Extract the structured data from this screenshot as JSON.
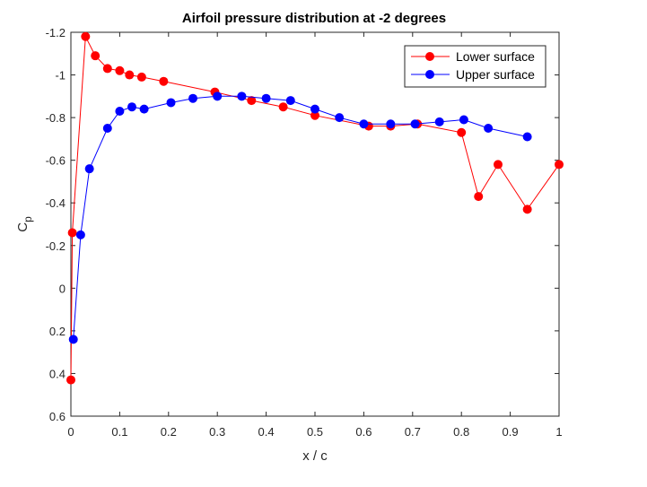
{
  "chart_data": {
    "type": "line",
    "title": "Airfoil pressure distribution at -2 degrees",
    "xlabel": "x / c",
    "ylabel_main": "C",
    "ylabel_sub": "p",
    "xlim": [
      0,
      1
    ],
    "ylim": [
      -1.2,
      0.6
    ],
    "y_reversed": true,
    "x_ticks": [
      0,
      0.1,
      0.2,
      0.3,
      0.4,
      0.5,
      0.6,
      0.7,
      0.8,
      0.9,
      1
    ],
    "x_tick_labels": [
      "0",
      "0.1",
      "0.2",
      "0.3",
      "0.4",
      "0.5",
      "0.6",
      "0.7",
      "0.8",
      "0.9",
      "1"
    ],
    "y_ticks": [
      -1.2,
      -1,
      -0.8,
      -0.6,
      -0.4,
      -0.2,
      0,
      0.2,
      0.4,
      0.6
    ],
    "y_tick_labels": [
      "-1.2",
      "-1",
      "-0.8",
      "-0.6",
      "-0.4",
      "-0.2",
      "0",
      "0.2",
      "0.4",
      "0.6"
    ],
    "grid": false,
    "legend_position": "top-right",
    "series": [
      {
        "name": "Lower surface",
        "color": "#ff0000",
        "x": [
          0.0,
          0.003,
          0.03,
          0.05,
          0.075,
          0.1,
          0.12,
          0.145,
          0.19,
          0.295,
          0.37,
          0.435,
          0.5,
          0.61,
          0.655,
          0.71,
          0.8,
          0.835,
          0.875,
          0.935,
          1.0
        ],
        "y": [
          0.43,
          -0.26,
          -1.18,
          -1.09,
          -1.03,
          -1.02,
          -1.0,
          -0.99,
          -0.97,
          -0.92,
          -0.88,
          -0.85,
          -0.81,
          -0.76,
          -0.76,
          -0.77,
          -0.73,
          -0.43,
          -0.58,
          -0.37,
          -0.58
        ]
      },
      {
        "name": "Upper surface",
        "color": "#0000ff",
        "x": [
          0.005,
          0.02,
          0.038,
          0.075,
          0.1,
          0.125,
          0.15,
          0.205,
          0.25,
          0.3,
          0.35,
          0.4,
          0.45,
          0.5,
          0.55,
          0.6,
          0.655,
          0.705,
          0.755,
          0.805,
          0.855,
          0.935
        ],
        "y": [
          0.24,
          -0.25,
          -0.56,
          -0.75,
          -0.83,
          -0.85,
          -0.84,
          -0.87,
          -0.89,
          -0.9,
          -0.9,
          -0.89,
          -0.88,
          -0.84,
          -0.8,
          -0.77,
          -0.77,
          -0.77,
          -0.78,
          -0.79,
          -0.75,
          -0.71
        ]
      }
    ]
  }
}
